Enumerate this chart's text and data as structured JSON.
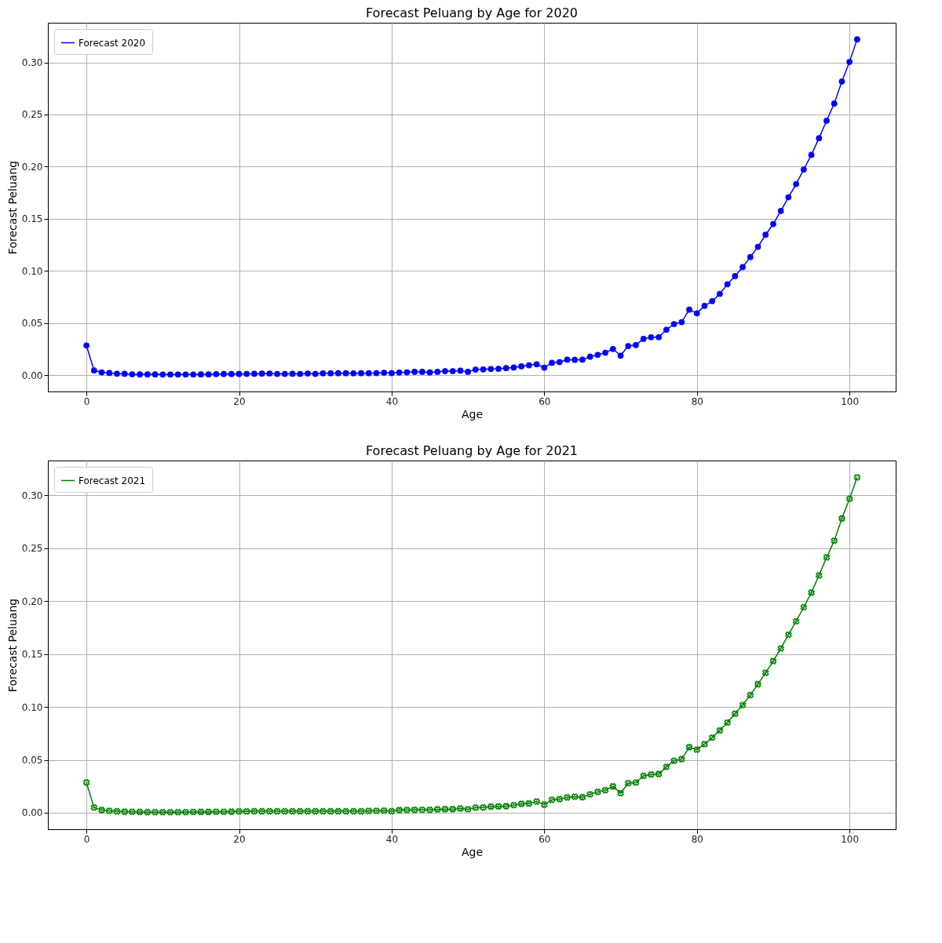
{
  "chart_data": [
    {
      "type": "line",
      "title": "Forecast Peluang by Age for 2020",
      "xlabel": "Age",
      "ylabel": "Forecast Peluang",
      "marker": "circle",
      "line_style": "solid",
      "grid": true,
      "legend": "top left",
      "xlim": [
        -5.05,
        106.05
      ],
      "ylim": [
        -0.0156,
        0.338
      ],
      "xticks": [
        0,
        20,
        40,
        60,
        80,
        100
      ],
      "yticks": [
        {
          "value": 0,
          "label": "0.00"
        },
        0.05,
        {
          "value": 0.1,
          "label": "0.10"
        },
        0.15,
        {
          "value": 0.2,
          "label": "0.20"
        },
        0.25,
        {
          "value": 0.3,
          "label": "0.30"
        }
      ],
      "x": [
        0,
        1,
        2,
        3,
        4,
        5,
        6,
        7,
        8,
        9,
        10,
        11,
        12,
        13,
        14,
        15,
        16,
        17,
        18,
        19,
        20,
        21,
        22,
        23,
        24,
        25,
        26,
        27,
        28,
        29,
        30,
        31,
        32,
        33,
        34,
        35,
        36,
        37,
        38,
        39,
        40,
        41,
        42,
        43,
        44,
        45,
        46,
        47,
        48,
        49,
        50,
        51,
        52,
        53,
        54,
        55,
        56,
        57,
        58,
        59,
        60,
        61,
        62,
        63,
        64,
        65,
        66,
        67,
        68,
        69,
        70,
        71,
        72,
        73,
        74,
        75,
        76,
        77,
        78,
        79,
        80,
        81,
        82,
        83,
        84,
        85,
        86,
        87,
        88,
        89,
        90,
        91,
        92,
        93,
        94,
        95,
        96,
        97,
        98,
        99,
        100,
        101
      ],
      "series": [
        {
          "name": "Forecast 2020",
          "color": "#0000ff",
          "values": [
            0.0286,
            0.0046,
            0.0028,
            0.0021,
            0.0015,
            0.0014,
            0.0009,
            0.0008,
            0.0008,
            0.0008,
            0.0007,
            0.0007,
            0.0007,
            0.0007,
            0.0007,
            0.0008,
            0.0008,
            0.0011,
            0.0012,
            0.0012,
            0.0012,
            0.0013,
            0.0014,
            0.0016,
            0.0017,
            0.0013,
            0.0013,
            0.0014,
            0.0013,
            0.0017,
            0.0013,
            0.0018,
            0.0018,
            0.0019,
            0.0019,
            0.0018,
            0.0019,
            0.0019,
            0.002,
            0.0024,
            0.002,
            0.0026,
            0.0028,
            0.0033,
            0.0033,
            0.0027,
            0.0033,
            0.0039,
            0.0039,
            0.0044,
            0.0033,
            0.0054,
            0.0056,
            0.006,
            0.0062,
            0.0068,
            0.0074,
            0.0085,
            0.0096,
            0.0105,
            0.0073,
            0.0119,
            0.0126,
            0.0149,
            0.0147,
            0.0149,
            0.0177,
            0.0195,
            0.0216,
            0.0252,
            0.0188,
            0.028,
            0.0289,
            0.0349,
            0.0365,
            0.0365,
            0.0436,
            0.0491,
            0.0509,
            0.0629,
            0.0594,
            0.0665,
            0.0711,
            0.078,
            0.0872,
            0.095,
            0.1037,
            0.1133,
            0.1232,
            0.1347,
            0.145,
            0.1576,
            0.1707,
            0.1833,
            0.1973,
            0.2113,
            0.2273,
            0.2441,
            0.2606,
            0.2817,
            0.3005,
            0.3221
          ]
        }
      ]
    },
    {
      "type": "line",
      "title": "Forecast Peluang by Age for 2021",
      "xlabel": "Age",
      "ylabel": "Forecast Peluang",
      "marker": "cross",
      "line_style": "solid",
      "grid": true,
      "legend": "top left",
      "xlim": [
        -5.05,
        106.05
      ],
      "ylim": [
        -0.0156,
        0.333
      ],
      "xticks": [
        0,
        20,
        40,
        60,
        80,
        100
      ],
      "yticks": [
        {
          "value": 0,
          "label": "0.00"
        },
        0.05,
        {
          "value": 0.1,
          "label": "0.10"
        },
        0.15,
        {
          "value": 0.2,
          "label": "0.20"
        },
        0.25,
        {
          "value": 0.3,
          "label": "0.30"
        }
      ],
      "x": [
        0,
        1,
        2,
        3,
        4,
        5,
        6,
        7,
        8,
        9,
        10,
        11,
        12,
        13,
        14,
        15,
        16,
        17,
        18,
        19,
        20,
        21,
        22,
        23,
        24,
        25,
        26,
        27,
        28,
        29,
        30,
        31,
        32,
        33,
        34,
        35,
        36,
        37,
        38,
        39,
        40,
        41,
        42,
        43,
        44,
        45,
        46,
        47,
        48,
        49,
        50,
        51,
        52,
        53,
        54,
        55,
        56,
        57,
        58,
        59,
        60,
        61,
        62,
        63,
        64,
        65,
        66,
        67,
        68,
        69,
        70,
        71,
        72,
        73,
        74,
        75,
        76,
        77,
        78,
        79,
        80,
        81,
        82,
        83,
        84,
        85,
        86,
        87,
        88,
        89,
        90,
        91,
        92,
        93,
        94,
        95,
        96,
        97,
        98,
        99,
        100,
        101
      ],
      "series": [
        {
          "name": "Forecast 2021",
          "color": "#008000",
          "values": [
            0.0286,
            0.005,
            0.0025,
            0.0018,
            0.0014,
            0.001,
            0.0009,
            0.0008,
            0.0006,
            0.0005,
            0.0005,
            0.0005,
            0.0005,
            0.0005,
            0.0007,
            0.0008,
            0.0008,
            0.0009,
            0.0009,
            0.001,
            0.0013,
            0.0013,
            0.0014,
            0.0014,
            0.0014,
            0.0014,
            0.0014,
            0.0014,
            0.0014,
            0.0014,
            0.0014,
            0.0014,
            0.0014,
            0.0014,
            0.0014,
            0.0014,
            0.0014,
            0.0017,
            0.0018,
            0.002,
            0.0015,
            0.0025,
            0.0026,
            0.0027,
            0.0028,
            0.0027,
            0.0032,
            0.0034,
            0.0034,
            0.004,
            0.0033,
            0.0048,
            0.005,
            0.0058,
            0.006,
            0.0062,
            0.0072,
            0.0084,
            0.0088,
            0.0106,
            0.0077,
            0.0122,
            0.0129,
            0.0145,
            0.0152,
            0.0147,
            0.0174,
            0.0197,
            0.0213,
            0.0249,
            0.0185,
            0.028,
            0.0285,
            0.0348,
            0.0362,
            0.0366,
            0.0434,
            0.0491,
            0.0507,
            0.062,
            0.0597,
            0.0649,
            0.071,
            0.0778,
            0.0853,
            0.0936,
            0.1018,
            0.1113,
            0.1215,
            0.1323,
            0.1434,
            0.1554,
            0.1683,
            0.181,
            0.1943,
            0.2081,
            0.2244,
            0.2414,
            0.2572,
            0.2782,
            0.2968,
            0.3171
          ]
        }
      ]
    }
  ]
}
